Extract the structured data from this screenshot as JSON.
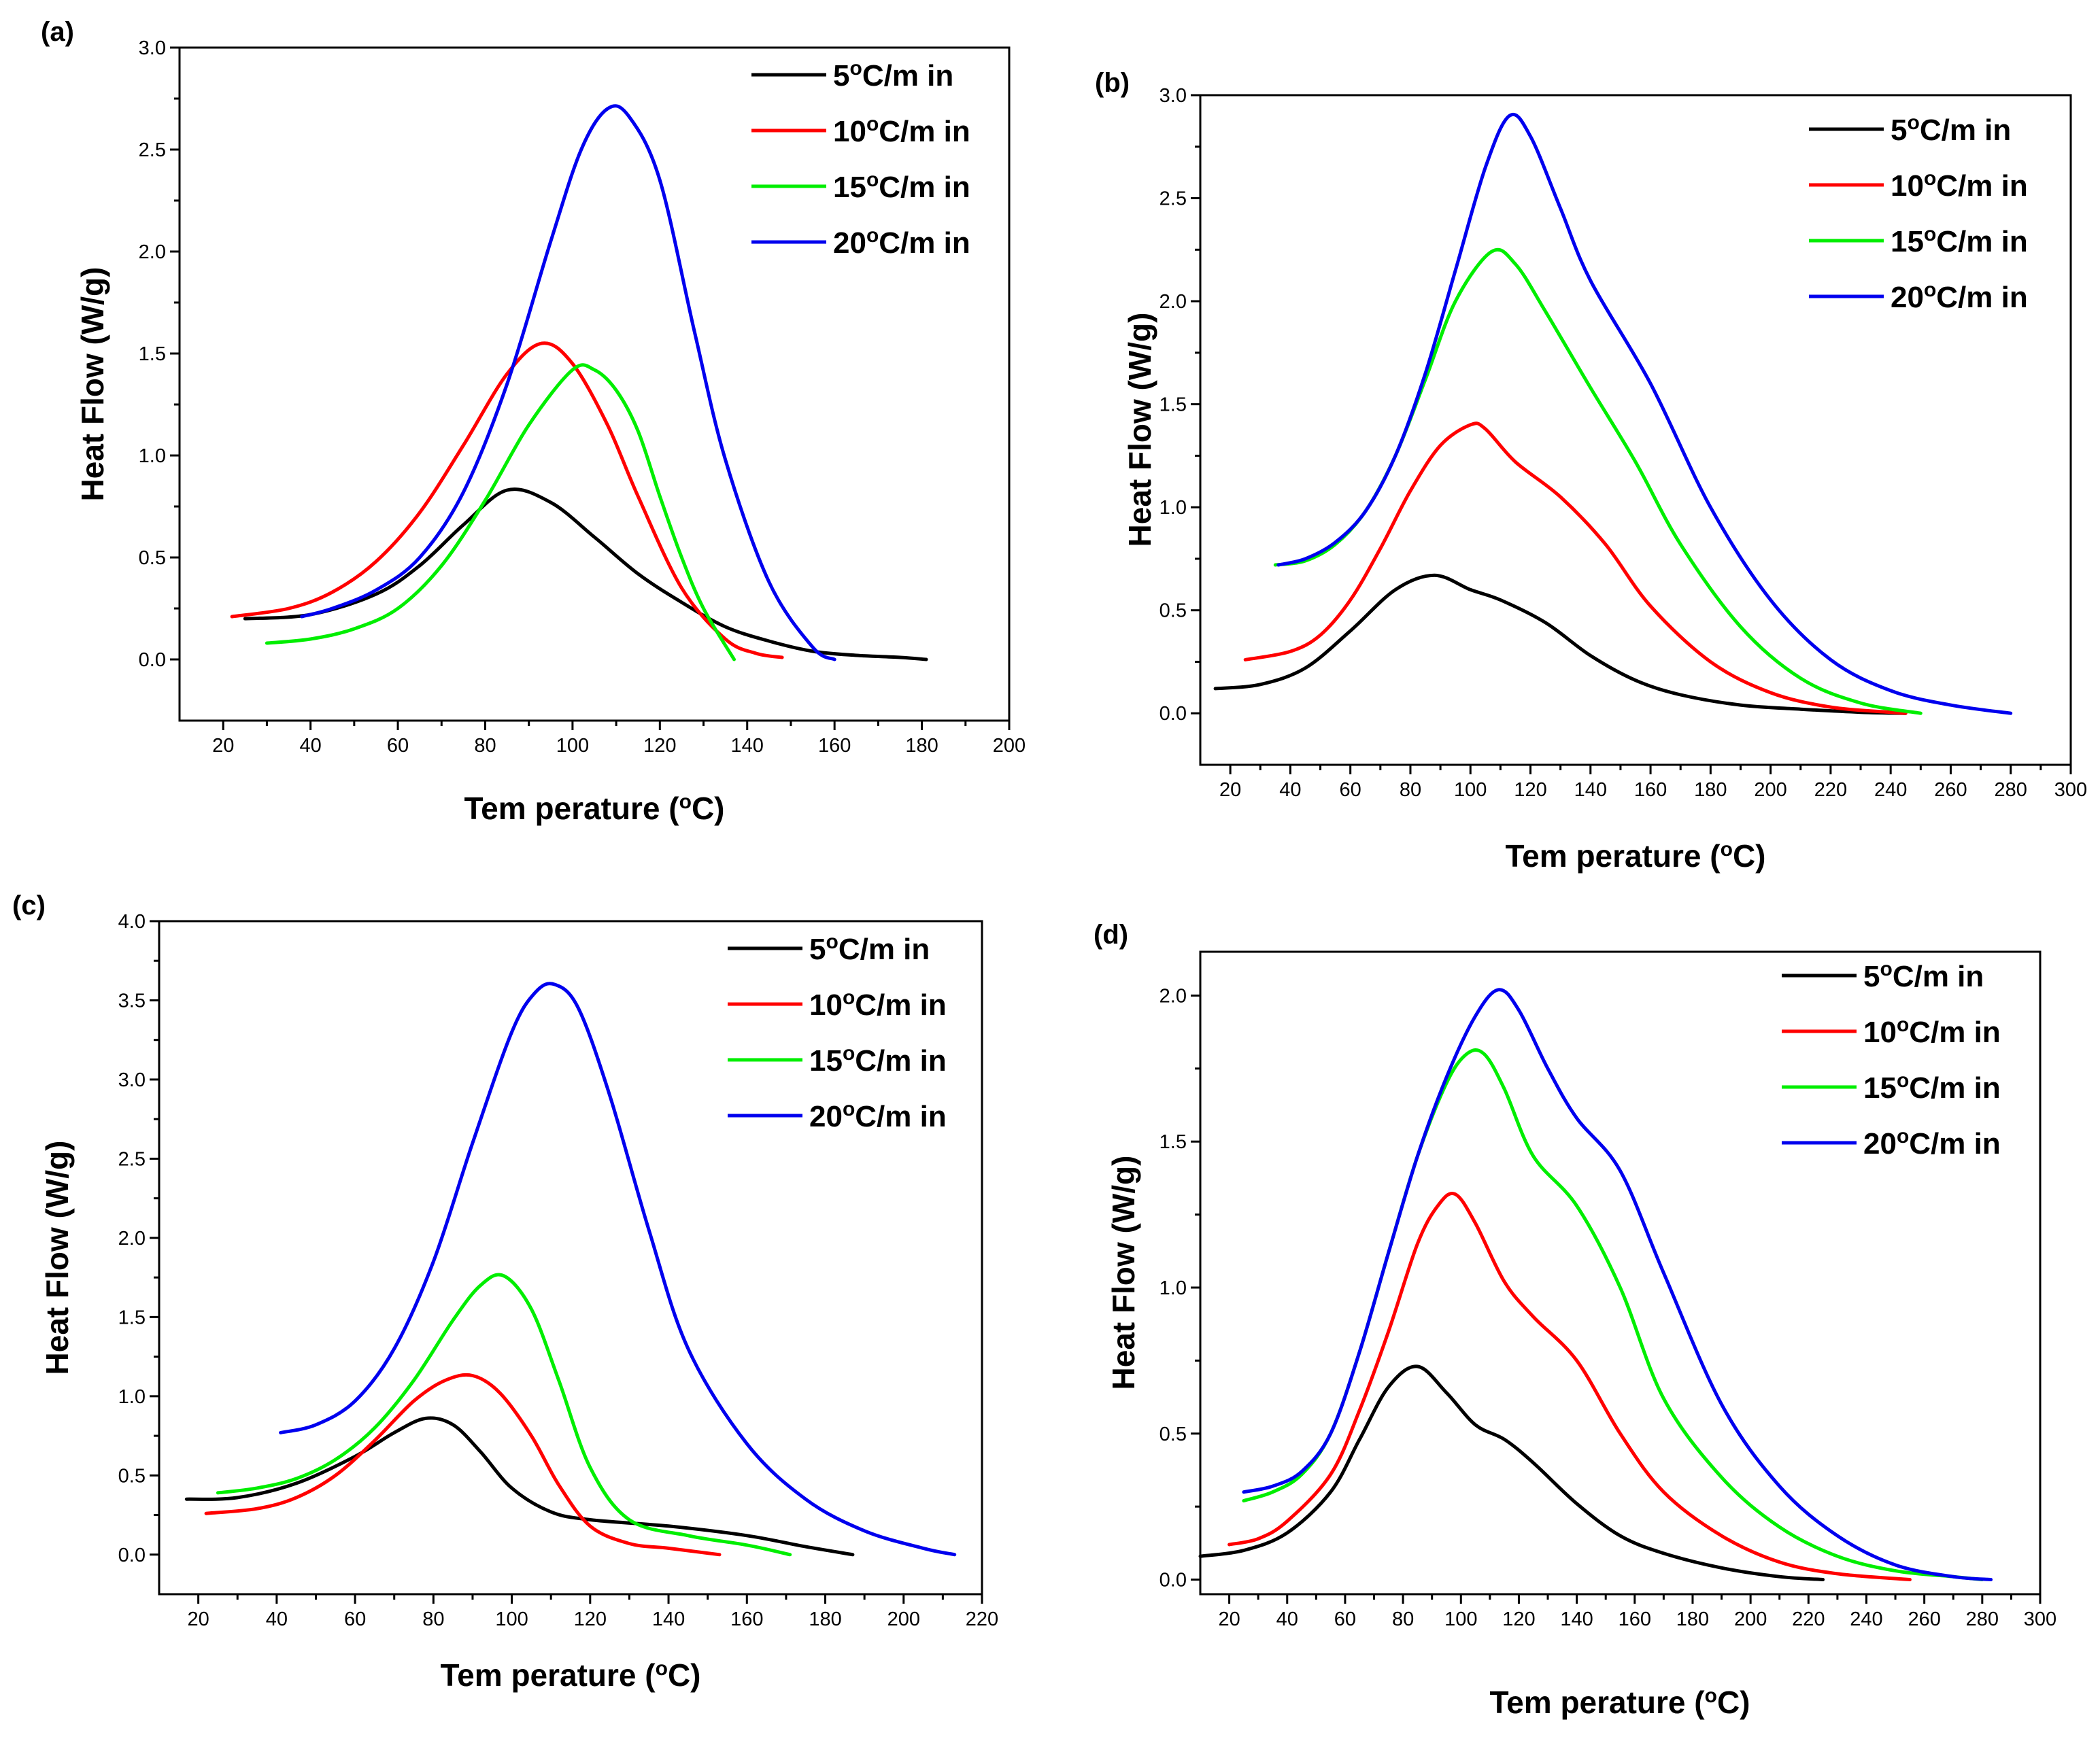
{
  "chart_data": [
    {
      "type": "line",
      "panel_label": "(a)",
      "xlabel": "Tem perature (°C)",
      "ylabel": "Heat Flow (W/g)",
      "xlim": [
        10,
        200
      ],
      "ylim": [
        -0.3,
        3.0
      ],
      "xticks": [
        "20",
        "40",
        "60",
        "80",
        "100",
        "120",
        "140",
        "160",
        "180",
        "200"
      ],
      "yticks": [
        "0.0",
        "0.5",
        "1.0",
        "1.5",
        "2.0",
        "2.5",
        "3.0"
      ],
      "legend_position": "top-right",
      "series": [
        {
          "name": "5°C/m in",
          "color": "#000000",
          "x": [
            25,
            40,
            55,
            65,
            75,
            85,
            95,
            105,
            115,
            125,
            135,
            145,
            155,
            165,
            175,
            181
          ],
          "y": [
            0.2,
            0.22,
            0.32,
            0.46,
            0.66,
            0.83,
            0.77,
            0.6,
            0.42,
            0.28,
            0.16,
            0.09,
            0.04,
            0.02,
            0.01,
            0.0
          ]
        },
        {
          "name": "10°C/m in",
          "color": "#ff0000",
          "x": [
            22,
            35,
            45,
            55,
            65,
            75,
            85,
            93,
            100,
            108,
            115,
            125,
            135,
            142,
            148
          ],
          "y": [
            0.21,
            0.25,
            0.33,
            0.48,
            0.72,
            1.05,
            1.4,
            1.55,
            1.45,
            1.15,
            0.8,
            0.35,
            0.1,
            0.03,
            0.01
          ]
        },
        {
          "name": "15°C/m in",
          "color": "#00ee00",
          "x": [
            30,
            40,
            50,
            60,
            70,
            80,
            90,
            100,
            105,
            110,
            115,
            120,
            125,
            130,
            137
          ],
          "y": [
            0.08,
            0.1,
            0.15,
            0.25,
            0.46,
            0.78,
            1.15,
            1.42,
            1.42,
            1.32,
            1.12,
            0.8,
            0.5,
            0.25,
            0.0
          ]
        },
        {
          "name": "20°C/m in",
          "color": "#0000ee",
          "x": [
            38,
            45,
            55,
            65,
            75,
            85,
            95,
            102,
            108,
            113,
            120,
            128,
            135,
            145,
            155,
            160
          ],
          "y": [
            0.21,
            0.25,
            0.34,
            0.5,
            0.82,
            1.35,
            2.05,
            2.5,
            2.7,
            2.66,
            2.35,
            1.6,
            0.98,
            0.38,
            0.06,
            0.0
          ]
        }
      ]
    },
    {
      "type": "line",
      "panel_label": "(b)",
      "xlabel": "Tem perature (°C)",
      "ylabel": "Heat Flow (W/g)",
      "xlim": [
        10,
        300
      ],
      "ylim": [
        -0.25,
        3.0
      ],
      "xticks": [
        "20",
        "40",
        "60",
        "80",
        "100",
        "120",
        "140",
        "160",
        "180",
        "200",
        "220",
        "240",
        "260",
        "280",
        "300"
      ],
      "yticks": [
        "0.0",
        "0.5",
        "1.0",
        "1.5",
        "2.0",
        "2.5",
        "3.0"
      ],
      "legend_position": "top-right",
      "series": [
        {
          "name": "5°C/m in",
          "color": "#000000",
          "x": [
            15,
            30,
            45,
            60,
            75,
            88,
            100,
            110,
            125,
            140,
            155,
            170,
            190,
            210,
            230,
            245
          ],
          "y": [
            0.12,
            0.14,
            0.22,
            0.4,
            0.6,
            0.67,
            0.6,
            0.55,
            0.44,
            0.28,
            0.16,
            0.09,
            0.04,
            0.02,
            0.005,
            0.0
          ]
        },
        {
          "name": "10°C/m in",
          "color": "#ff0000",
          "x": [
            25,
            40,
            50,
            60,
            70,
            80,
            90,
            100,
            105,
            115,
            130,
            145,
            160,
            180,
            200,
            220,
            240,
            245
          ],
          "y": [
            0.26,
            0.3,
            0.38,
            0.55,
            0.8,
            1.08,
            1.3,
            1.4,
            1.38,
            1.22,
            1.05,
            0.82,
            0.52,
            0.25,
            0.1,
            0.03,
            0.005,
            0.0
          ]
        },
        {
          "name": "15°C/m in",
          "color": "#00ee00",
          "x": [
            35,
            45,
            55,
            65,
            75,
            85,
            95,
            107,
            115,
            125,
            140,
            155,
            170,
            190,
            210,
            230,
            250
          ],
          "y": [
            0.72,
            0.74,
            0.82,
            0.98,
            1.25,
            1.62,
            2.0,
            2.24,
            2.18,
            1.95,
            1.58,
            1.22,
            0.82,
            0.42,
            0.17,
            0.05,
            0.0
          ]
        },
        {
          "name": "20°C/m in",
          "color": "#0000ee",
          "x": [
            36,
            45,
            55,
            65,
            75,
            85,
            95,
            105,
            113,
            120,
            130,
            140,
            160,
            180,
            200,
            220,
            240,
            260,
            280
          ],
          "y": [
            0.72,
            0.75,
            0.83,
            0.98,
            1.25,
            1.65,
            2.15,
            2.65,
            2.9,
            2.8,
            2.45,
            2.1,
            1.6,
            1.0,
            0.55,
            0.26,
            0.11,
            0.04,
            0.0
          ]
        }
      ]
    },
    {
      "type": "line",
      "panel_label": "(c)",
      "xlabel": "Tem perature (°C)",
      "ylabel": "Heat Flow (W/g)",
      "xlim": [
        10,
        220
      ],
      "ylim": [
        -0.25,
        4.0
      ],
      "xticks": [
        "20",
        "40",
        "60",
        "80",
        "100",
        "120",
        "140",
        "160",
        "180",
        "200",
        "220"
      ],
      "yticks": [
        "0.0",
        "0.5",
        "1.0",
        "1.5",
        "2.0",
        "2.5",
        "3.0",
        "3.5",
        "4.0"
      ],
      "legend_position": "top-right",
      "series": [
        {
          "name": "5°C/m in",
          "color": "#000000",
          "x": [
            17,
            30,
            45,
            60,
            70,
            78,
            85,
            92,
            100,
            110,
            120,
            140,
            160,
            175,
            187
          ],
          "y": [
            0.35,
            0.36,
            0.45,
            0.62,
            0.77,
            0.86,
            0.82,
            0.65,
            0.42,
            0.27,
            0.22,
            0.18,
            0.12,
            0.05,
            0.0
          ]
        },
        {
          "name": "10°C/m in",
          "color": "#ff0000",
          "x": [
            22,
            35,
            45,
            55,
            65,
            75,
            83,
            90,
            97,
            105,
            112,
            120,
            130,
            140,
            153
          ],
          "y": [
            0.26,
            0.29,
            0.36,
            0.5,
            0.72,
            0.97,
            1.1,
            1.13,
            1.02,
            0.75,
            0.44,
            0.18,
            0.07,
            0.04,
            0.0
          ]
        },
        {
          "name": "15°C/m in",
          "color": "#00ee00",
          "x": [
            25,
            35,
            45,
            55,
            65,
            75,
            85,
            92,
            98,
            105,
            112,
            120,
            130,
            145,
            160,
            171
          ],
          "y": [
            0.39,
            0.42,
            0.48,
            0.6,
            0.8,
            1.1,
            1.48,
            1.7,
            1.76,
            1.55,
            1.1,
            0.55,
            0.22,
            0.12,
            0.06,
            0.0
          ]
        },
        {
          "name": "20°C/m in",
          "color": "#0000ee",
          "x": [
            41,
            50,
            60,
            70,
            80,
            90,
            100,
            106,
            111,
            117,
            125,
            135,
            145,
            160,
            175,
            190,
            205,
            213
          ],
          "y": [
            0.77,
            0.82,
            0.97,
            1.3,
            1.85,
            2.6,
            3.3,
            3.55,
            3.6,
            3.45,
            2.9,
            2.05,
            1.3,
            0.7,
            0.35,
            0.15,
            0.04,
            0.0
          ]
        }
      ]
    },
    {
      "type": "line",
      "panel_label": "(d)",
      "xlabel": "Tem perature (°C)",
      "ylabel": "Heat Flow (W/g)",
      "xlim": [
        10,
        300
      ],
      "ylim": [
        -0.05,
        2.15
      ],
      "xticks": [
        "20",
        "40",
        "60",
        "80",
        "100",
        "120",
        "140",
        "160",
        "180",
        "200",
        "220",
        "240",
        "260",
        "280",
        "300"
      ],
      "yticks": [
        "0.0",
        "0.5",
        "1.0",
        "1.5",
        "2.0"
      ],
      "legend_position": "top-right",
      "series": [
        {
          "name": "5°C/m in",
          "color": "#000000",
          "x": [
            10,
            25,
            40,
            55,
            65,
            75,
            85,
            95,
            105,
            115,
            125,
            140,
            155,
            170,
            190,
            210,
            225
          ],
          "y": [
            0.08,
            0.1,
            0.16,
            0.3,
            0.48,
            0.66,
            0.73,
            0.64,
            0.53,
            0.48,
            0.4,
            0.26,
            0.15,
            0.09,
            0.04,
            0.01,
            0.0
          ]
        },
        {
          "name": "10°C/m in",
          "color": "#ff0000",
          "x": [
            20,
            30,
            40,
            55,
            65,
            75,
            85,
            92,
            98,
            105,
            115,
            125,
            140,
            155,
            170,
            190,
            210,
            230,
            255
          ],
          "y": [
            0.12,
            0.14,
            0.2,
            0.36,
            0.58,
            0.85,
            1.15,
            1.28,
            1.32,
            1.22,
            1.02,
            0.9,
            0.75,
            0.5,
            0.3,
            0.15,
            0.06,
            0.02,
            0.0
          ]
        },
        {
          "name": "15°C/m in",
          "color": "#00ee00",
          "x": [
            25,
            35,
            45,
            55,
            65,
            75,
            85,
            95,
            102,
            108,
            115,
            125,
            140,
            155,
            170,
            190,
            210,
            230,
            250,
            270,
            280
          ],
          "y": [
            0.27,
            0.3,
            0.36,
            0.5,
            0.78,
            1.12,
            1.45,
            1.7,
            1.8,
            1.8,
            1.68,
            1.45,
            1.28,
            1.0,
            0.62,
            0.35,
            0.18,
            0.08,
            0.03,
            0.01,
            0.0
          ]
        },
        {
          "name": "20°C/m in",
          "color": "#0000ee",
          "x": [
            25,
            35,
            45,
            55,
            65,
            75,
            85,
            95,
            105,
            113,
            120,
            130,
            140,
            155,
            170,
            190,
            210,
            230,
            250,
            270,
            283
          ],
          "y": [
            0.3,
            0.32,
            0.37,
            0.5,
            0.78,
            1.12,
            1.45,
            1.72,
            1.93,
            2.02,
            1.95,
            1.75,
            1.58,
            1.4,
            1.05,
            0.6,
            0.32,
            0.15,
            0.05,
            0.01,
            0.0
          ]
        }
      ]
    }
  ]
}
